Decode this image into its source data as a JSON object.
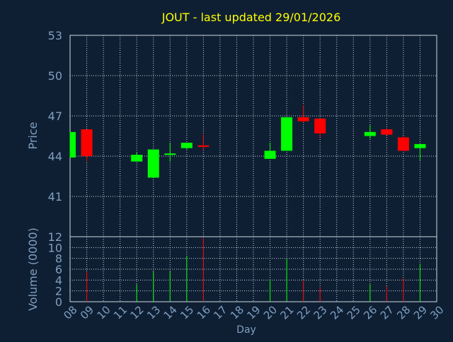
{
  "colors": {
    "background": "#0f1f33",
    "axis_text": "#7f9fc0",
    "title": "#ffff00",
    "grid": "#c8d2dc",
    "up": "#00ff00",
    "down": "#ff0000"
  },
  "chart_data": [
    {
      "type": "candlestick",
      "title": "JOUT - last updated 29/01/2026",
      "ylabel": "Price",
      "ylim": [
        38,
        53
      ],
      "yticks": [
        41,
        44,
        47,
        50,
        53
      ],
      "grid": true,
      "x_categories": [
        "08",
        "09",
        "10",
        "11",
        "12",
        "13",
        "14",
        "15",
        "16",
        "17",
        "18",
        "19",
        "20",
        "21",
        "22",
        "23",
        "24",
        "25",
        "26",
        "27",
        "28",
        "29",
        "30"
      ],
      "candles": [
        {
          "day": "08",
          "open": 43.9,
          "close": 45.8,
          "high": 45.8,
          "low": 43.9
        },
        {
          "day": "09",
          "open": 46.0,
          "close": 44.0,
          "high": 46.0,
          "low": 43.6
        },
        {
          "day": "12",
          "open": 43.6,
          "close": 44.1,
          "high": 44.3,
          "low": 43.6
        },
        {
          "day": "13",
          "open": 42.4,
          "close": 44.5,
          "high": 44.5,
          "low": 42.4
        },
        {
          "day": "14",
          "open": 44.2,
          "close": 44.2,
          "high": 45.0,
          "low": 43.6
        },
        {
          "day": "15",
          "open": 44.6,
          "close": 45.0,
          "high": 45.0,
          "low": 44.5
        },
        {
          "day": "16",
          "open": 44.8,
          "close": 44.7,
          "high": 45.6,
          "low": 44.5
        },
        {
          "day": "20",
          "open": 43.8,
          "close": 44.4,
          "high": 45.0,
          "low": 43.8
        },
        {
          "day": "21",
          "open": 44.4,
          "close": 46.9,
          "high": 46.9,
          "low": 44.4
        },
        {
          "day": "22",
          "open": 46.9,
          "close": 46.6,
          "high": 47.8,
          "low": 46.5
        },
        {
          "day": "23",
          "open": 46.8,
          "close": 45.7,
          "high": 46.8,
          "low": 45.4
        },
        {
          "day": "26",
          "open": 45.5,
          "close": 45.8,
          "high": 46.3,
          "low": 45.3
        },
        {
          "day": "27",
          "open": 46.0,
          "close": 45.6,
          "high": 46.1,
          "low": 45.6
        },
        {
          "day": "28",
          "open": 45.4,
          "close": 44.4,
          "high": 45.5,
          "low": 44.4
        },
        {
          "day": "29",
          "open": 44.6,
          "close": 44.9,
          "high": 44.9,
          "low": 43.7
        }
      ]
    },
    {
      "type": "bar",
      "ylabel": "Volume (0000)",
      "xlabel": "Day",
      "ylim": [
        0,
        12
      ],
      "yticks": [
        0,
        2,
        4,
        6,
        8,
        10,
        12
      ],
      "grid": true,
      "categories": [
        "08",
        "09",
        "10",
        "11",
        "12",
        "13",
        "14",
        "15",
        "16",
        "17",
        "18",
        "19",
        "20",
        "21",
        "22",
        "23",
        "24",
        "25",
        "26",
        "27",
        "28",
        "29",
        "30"
      ],
      "bars": [
        {
          "day": "09",
          "value": 5.5,
          "direction": "down"
        },
        {
          "day": "12",
          "value": 3.2,
          "direction": "up"
        },
        {
          "day": "13",
          "value": 5.6,
          "direction": "up"
        },
        {
          "day": "14",
          "value": 5.6,
          "direction": "up"
        },
        {
          "day": "15",
          "value": 8.5,
          "direction": "up"
        },
        {
          "day": "16",
          "value": 11.7,
          "direction": "down"
        },
        {
          "day": "20",
          "value": 4.1,
          "direction": "up"
        },
        {
          "day": "21",
          "value": 7.9,
          "direction": "up"
        },
        {
          "day": "22",
          "value": 3.9,
          "direction": "down"
        },
        {
          "day": "23",
          "value": 2.7,
          "direction": "down"
        },
        {
          "day": "26",
          "value": 3.2,
          "direction": "up"
        },
        {
          "day": "27",
          "value": 2.8,
          "direction": "down"
        },
        {
          "day": "28",
          "value": 4.3,
          "direction": "down"
        },
        {
          "day": "29",
          "value": 7.0,
          "direction": "up"
        }
      ]
    }
  ]
}
